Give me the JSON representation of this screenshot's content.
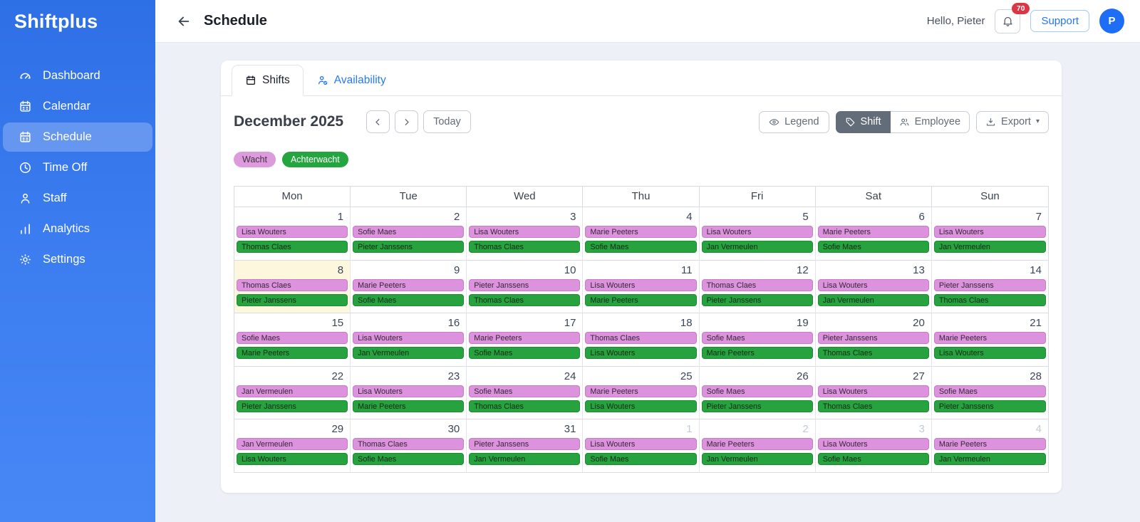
{
  "app": {
    "logo": "Shiftplus"
  },
  "sidebar": {
    "items": [
      {
        "label": "Dashboard",
        "icon": "gauge-icon",
        "active": false
      },
      {
        "label": "Calendar",
        "icon": "calendar-icon",
        "active": false
      },
      {
        "label": "Schedule",
        "icon": "schedule-icon",
        "active": true
      },
      {
        "label": "Time Off",
        "icon": "clock-icon",
        "active": false
      },
      {
        "label": "Staff",
        "icon": "person-icon",
        "active": false
      },
      {
        "label": "Analytics",
        "icon": "bar-chart-icon",
        "active": false
      },
      {
        "label": "Settings",
        "icon": "gear-icon",
        "active": false
      }
    ]
  },
  "header": {
    "title": "Schedule",
    "greeting": "Hello, Pieter",
    "notification_count": "70",
    "support_label": "Support",
    "avatar_initial": "P"
  },
  "tabs": [
    {
      "label": "Shifts",
      "icon": "calendar-icon",
      "active": true
    },
    {
      "label": "Availability",
      "icon": "person-check-icon",
      "active": false
    }
  ],
  "toolbar": {
    "month_title": "December 2025",
    "today_label": "Today",
    "legend_label": "Legend",
    "shift_label": "Shift",
    "employee_label": "Employee",
    "export_label": "Export"
  },
  "legend_badges": [
    {
      "label": "Wacht",
      "type": "wacht"
    },
    {
      "label": "Achterwacht",
      "type": "achterwacht"
    }
  ],
  "colors": {
    "sidebar_blue": "#3b7cf0",
    "accent_blue": "#2574f4",
    "wacht_pink": "#dd92dd",
    "achterwacht_green": "#26a23e",
    "notification_red": "#dc3545",
    "today_highlight": "#fdf7dd"
  },
  "calendar": {
    "weekdays": [
      "Mon",
      "Tue",
      "Wed",
      "Thu",
      "Fri",
      "Sat",
      "Sun"
    ],
    "weeks": [
      [
        {
          "date": "1",
          "outside": false,
          "today": false,
          "shifts": [
            {
              "name": "Lisa Wouters",
              "type": "wacht"
            },
            {
              "name": "Thomas Claes",
              "type": "achterwacht"
            }
          ]
        },
        {
          "date": "2",
          "outside": false,
          "today": false,
          "shifts": [
            {
              "name": "Sofie Maes",
              "type": "wacht"
            },
            {
              "name": "Pieter Janssens",
              "type": "achterwacht"
            }
          ]
        },
        {
          "date": "3",
          "outside": false,
          "today": false,
          "shifts": [
            {
              "name": "Lisa Wouters",
              "type": "wacht"
            },
            {
              "name": "Thomas Claes",
              "type": "achterwacht"
            }
          ]
        },
        {
          "date": "4",
          "outside": false,
          "today": false,
          "shifts": [
            {
              "name": "Marie Peeters",
              "type": "wacht"
            },
            {
              "name": "Sofie Maes",
              "type": "achterwacht"
            }
          ]
        },
        {
          "date": "5",
          "outside": false,
          "today": false,
          "shifts": [
            {
              "name": "Lisa Wouters",
              "type": "wacht"
            },
            {
              "name": "Jan Vermeulen",
              "type": "achterwacht"
            }
          ]
        },
        {
          "date": "6",
          "outside": false,
          "today": false,
          "shifts": [
            {
              "name": "Marie Peeters",
              "type": "wacht"
            },
            {
              "name": "Sofie Maes",
              "type": "achterwacht"
            }
          ]
        },
        {
          "date": "7",
          "outside": false,
          "today": false,
          "shifts": [
            {
              "name": "Lisa Wouters",
              "type": "wacht"
            },
            {
              "name": "Jan Vermeulen",
              "type": "achterwacht"
            }
          ]
        }
      ],
      [
        {
          "date": "8",
          "outside": false,
          "today": true,
          "shifts": [
            {
              "name": "Thomas Claes",
              "type": "wacht"
            },
            {
              "name": "Pieter Janssens",
              "type": "achterwacht"
            }
          ]
        },
        {
          "date": "9",
          "outside": false,
          "today": false,
          "shifts": [
            {
              "name": "Marie Peeters",
              "type": "wacht"
            },
            {
              "name": "Sofie Maes",
              "type": "achterwacht"
            }
          ]
        },
        {
          "date": "10",
          "outside": false,
          "today": false,
          "shifts": [
            {
              "name": "Pieter Janssens",
              "type": "wacht"
            },
            {
              "name": "Thomas Claes",
              "type": "achterwacht"
            }
          ]
        },
        {
          "date": "11",
          "outside": false,
          "today": false,
          "shifts": [
            {
              "name": "Lisa Wouters",
              "type": "wacht"
            },
            {
              "name": "Marie Peeters",
              "type": "achterwacht"
            }
          ]
        },
        {
          "date": "12",
          "outside": false,
          "today": false,
          "shifts": [
            {
              "name": "Thomas Claes",
              "type": "wacht"
            },
            {
              "name": "Pieter Janssens",
              "type": "achterwacht"
            }
          ]
        },
        {
          "date": "13",
          "outside": false,
          "today": false,
          "shifts": [
            {
              "name": "Lisa Wouters",
              "type": "wacht"
            },
            {
              "name": "Jan Vermeulen",
              "type": "achterwacht"
            }
          ]
        },
        {
          "date": "14",
          "outside": false,
          "today": false,
          "shifts": [
            {
              "name": "Pieter Janssens",
              "type": "wacht"
            },
            {
              "name": "Thomas Claes",
              "type": "achterwacht"
            }
          ]
        }
      ],
      [
        {
          "date": "15",
          "outside": false,
          "today": false,
          "shifts": [
            {
              "name": "Sofie Maes",
              "type": "wacht"
            },
            {
              "name": "Marie Peeters",
              "type": "achterwacht"
            }
          ]
        },
        {
          "date": "16",
          "outside": false,
          "today": false,
          "shifts": [
            {
              "name": "Lisa Wouters",
              "type": "wacht"
            },
            {
              "name": "Jan Vermeulen",
              "type": "achterwacht"
            }
          ]
        },
        {
          "date": "17",
          "outside": false,
          "today": false,
          "shifts": [
            {
              "name": "Marie Peeters",
              "type": "wacht"
            },
            {
              "name": "Sofie Maes",
              "type": "achterwacht"
            }
          ]
        },
        {
          "date": "18",
          "outside": false,
          "today": false,
          "shifts": [
            {
              "name": "Thomas Claes",
              "type": "wacht"
            },
            {
              "name": "Lisa Wouters",
              "type": "achterwacht"
            }
          ]
        },
        {
          "date": "19",
          "outside": false,
          "today": false,
          "shifts": [
            {
              "name": "Sofie Maes",
              "type": "wacht"
            },
            {
              "name": "Marie Peeters",
              "type": "achterwacht"
            }
          ]
        },
        {
          "date": "20",
          "outside": false,
          "today": false,
          "shifts": [
            {
              "name": "Pieter Janssens",
              "type": "wacht"
            },
            {
              "name": "Thomas Claes",
              "type": "achterwacht"
            }
          ]
        },
        {
          "date": "21",
          "outside": false,
          "today": false,
          "shifts": [
            {
              "name": "Marie Peeters",
              "type": "wacht"
            },
            {
              "name": "Lisa Wouters",
              "type": "achterwacht"
            }
          ]
        }
      ],
      [
        {
          "date": "22",
          "outside": false,
          "today": false,
          "shifts": [
            {
              "name": "Jan Vermeulen",
              "type": "wacht"
            },
            {
              "name": "Pieter Janssens",
              "type": "achterwacht"
            }
          ]
        },
        {
          "date": "23",
          "outside": false,
          "today": false,
          "shifts": [
            {
              "name": "Lisa Wouters",
              "type": "wacht"
            },
            {
              "name": "Marie Peeters",
              "type": "achterwacht"
            }
          ]
        },
        {
          "date": "24",
          "outside": false,
          "today": false,
          "shifts": [
            {
              "name": "Sofie Maes",
              "type": "wacht"
            },
            {
              "name": "Thomas Claes",
              "type": "achterwacht"
            }
          ]
        },
        {
          "date": "25",
          "outside": false,
          "today": false,
          "shifts": [
            {
              "name": "Marie Peeters",
              "type": "wacht"
            },
            {
              "name": "Lisa Wouters",
              "type": "achterwacht"
            }
          ]
        },
        {
          "date": "26",
          "outside": false,
          "today": false,
          "shifts": [
            {
              "name": "Sofie Maes",
              "type": "wacht"
            },
            {
              "name": "Pieter Janssens",
              "type": "achterwacht"
            }
          ]
        },
        {
          "date": "27",
          "outside": false,
          "today": false,
          "shifts": [
            {
              "name": "Lisa Wouters",
              "type": "wacht"
            },
            {
              "name": "Thomas Claes",
              "type": "achterwacht"
            }
          ]
        },
        {
          "date": "28",
          "outside": false,
          "today": false,
          "shifts": [
            {
              "name": "Sofie Maes",
              "type": "wacht"
            },
            {
              "name": "Pieter Janssens",
              "type": "achterwacht"
            }
          ]
        }
      ],
      [
        {
          "date": "29",
          "outside": false,
          "today": false,
          "shifts": [
            {
              "name": "Jan Vermeulen",
              "type": "wacht"
            },
            {
              "name": "Lisa Wouters",
              "type": "achterwacht"
            }
          ]
        },
        {
          "date": "30",
          "outside": false,
          "today": false,
          "shifts": [
            {
              "name": "Thomas Claes",
              "type": "wacht"
            },
            {
              "name": "Sofie Maes",
              "type": "achterwacht"
            }
          ]
        },
        {
          "date": "31",
          "outside": false,
          "today": false,
          "shifts": [
            {
              "name": "Pieter Janssens",
              "type": "wacht"
            },
            {
              "name": "Jan Vermeulen",
              "type": "achterwacht"
            }
          ]
        },
        {
          "date": "1",
          "outside": true,
          "today": false,
          "shifts": [
            {
              "name": "Lisa Wouters",
              "type": "wacht"
            },
            {
              "name": "Sofie Maes",
              "type": "achterwacht"
            }
          ]
        },
        {
          "date": "2",
          "outside": true,
          "today": false,
          "shifts": [
            {
              "name": "Marie Peeters",
              "type": "wacht"
            },
            {
              "name": "Jan Vermeulen",
              "type": "achterwacht"
            }
          ]
        },
        {
          "date": "3",
          "outside": true,
          "today": false,
          "shifts": [
            {
              "name": "Lisa Wouters",
              "type": "wacht"
            },
            {
              "name": "Sofie Maes",
              "type": "achterwacht"
            }
          ]
        },
        {
          "date": "4",
          "outside": true,
          "today": false,
          "shifts": [
            {
              "name": "Marie Peeters",
              "type": "wacht"
            },
            {
              "name": "Jan Vermeulen",
              "type": "achterwacht"
            }
          ]
        }
      ]
    ]
  }
}
